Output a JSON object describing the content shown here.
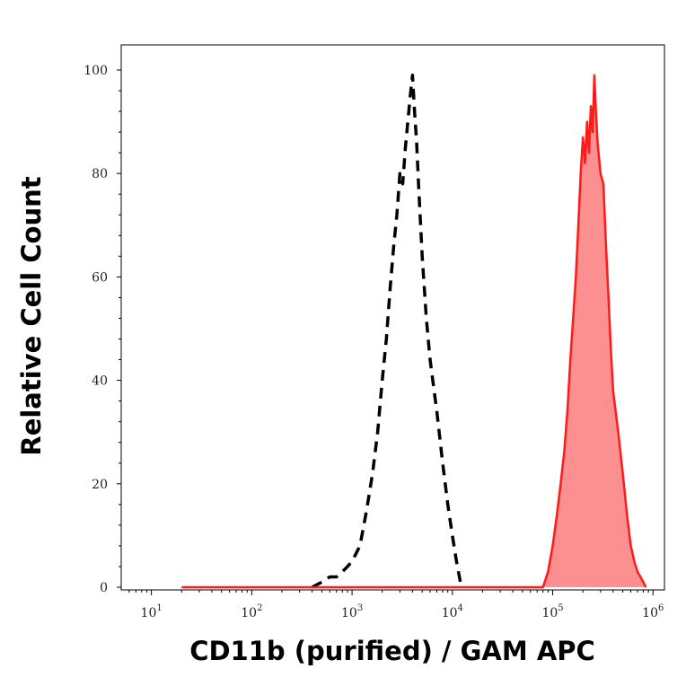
{
  "chart_data": {
    "type": "area",
    "xlabel": "CD11b (purified) / GAM APC",
    "ylabel": "Relative Cell Count",
    "x_scale": "log",
    "xlim": [
      5,
      1300000
    ],
    "ylim": [
      0,
      100
    ],
    "grid": false,
    "y_ticks": [
      "0",
      "20",
      "40",
      "60",
      "80",
      "100"
    ],
    "y_tick_values": [
      0,
      20,
      40,
      60,
      80,
      100
    ],
    "x_ticks": [
      {
        "base": "10",
        "exp": "1",
        "value": 10
      },
      {
        "base": "10",
        "exp": "2",
        "value": 100
      },
      {
        "base": "10",
        "exp": "3",
        "value": 1000
      },
      {
        "base": "10",
        "exp": "4",
        "value": 10000
      },
      {
        "base": "10",
        "exp": "5",
        "value": 100000
      },
      {
        "base": "10",
        "exp": "6",
        "value": 1000000
      }
    ],
    "series": [
      {
        "style": "dashed-black-line",
        "color": "#000000",
        "points": [
          [
            400,
            0
          ],
          [
            500,
            1
          ],
          [
            600,
            2
          ],
          [
            700,
            2
          ],
          [
            800,
            3
          ],
          [
            900,
            4
          ],
          [
            1000,
            5
          ],
          [
            1200,
            8
          ],
          [
            1400,
            15
          ],
          [
            1600,
            22
          ],
          [
            1800,
            30
          ],
          [
            2000,
            40
          ],
          [
            2200,
            48
          ],
          [
            2400,
            58
          ],
          [
            2600,
            66
          ],
          [
            2800,
            72
          ],
          [
            3000,
            80
          ],
          [
            3200,
            78
          ],
          [
            3400,
            85
          ],
          [
            3600,
            90
          ],
          [
            3800,
            95
          ],
          [
            4000,
            99
          ],
          [
            4200,
            92
          ],
          [
            4400,
            86
          ],
          [
            4600,
            78
          ],
          [
            5000,
            64
          ],
          [
            5500,
            52
          ],
          [
            6000,
            44
          ],
          [
            7000,
            34
          ],
          [
            8000,
            24
          ],
          [
            9000,
            16
          ],
          [
            10000,
            10
          ],
          [
            11000,
            5
          ],
          [
            12000,
            1
          ],
          [
            13000,
            0
          ]
        ]
      },
      {
        "style": "red-filled-area",
        "color": "#ff1a1a",
        "fill": "#fc8f8f",
        "points": [
          [
            20,
            0
          ],
          [
            80000,
            0
          ],
          [
            90000,
            3
          ],
          [
            100000,
            8
          ],
          [
            110000,
            14
          ],
          [
            120000,
            20
          ],
          [
            130000,
            26
          ],
          [
            140000,
            34
          ],
          [
            150000,
            44
          ],
          [
            160000,
            52
          ],
          [
            170000,
            60
          ],
          [
            180000,
            70
          ],
          [
            190000,
            80
          ],
          [
            200000,
            87
          ],
          [
            210000,
            82
          ],
          [
            220000,
            90
          ],
          [
            230000,
            84
          ],
          [
            240000,
            93
          ],
          [
            250000,
            88
          ],
          [
            260000,
            99
          ],
          [
            270000,
            92
          ],
          [
            280000,
            86
          ],
          [
            300000,
            80
          ],
          [
            320000,
            78
          ],
          [
            340000,
            66
          ],
          [
            360000,
            56
          ],
          [
            380000,
            46
          ],
          [
            400000,
            38
          ],
          [
            450000,
            30
          ],
          [
            500000,
            22
          ],
          [
            550000,
            14
          ],
          [
            600000,
            8
          ],
          [
            650000,
            5
          ],
          [
            700000,
            3
          ],
          [
            750000,
            2
          ],
          [
            800000,
            1
          ],
          [
            850000,
            0
          ]
        ]
      }
    ]
  }
}
